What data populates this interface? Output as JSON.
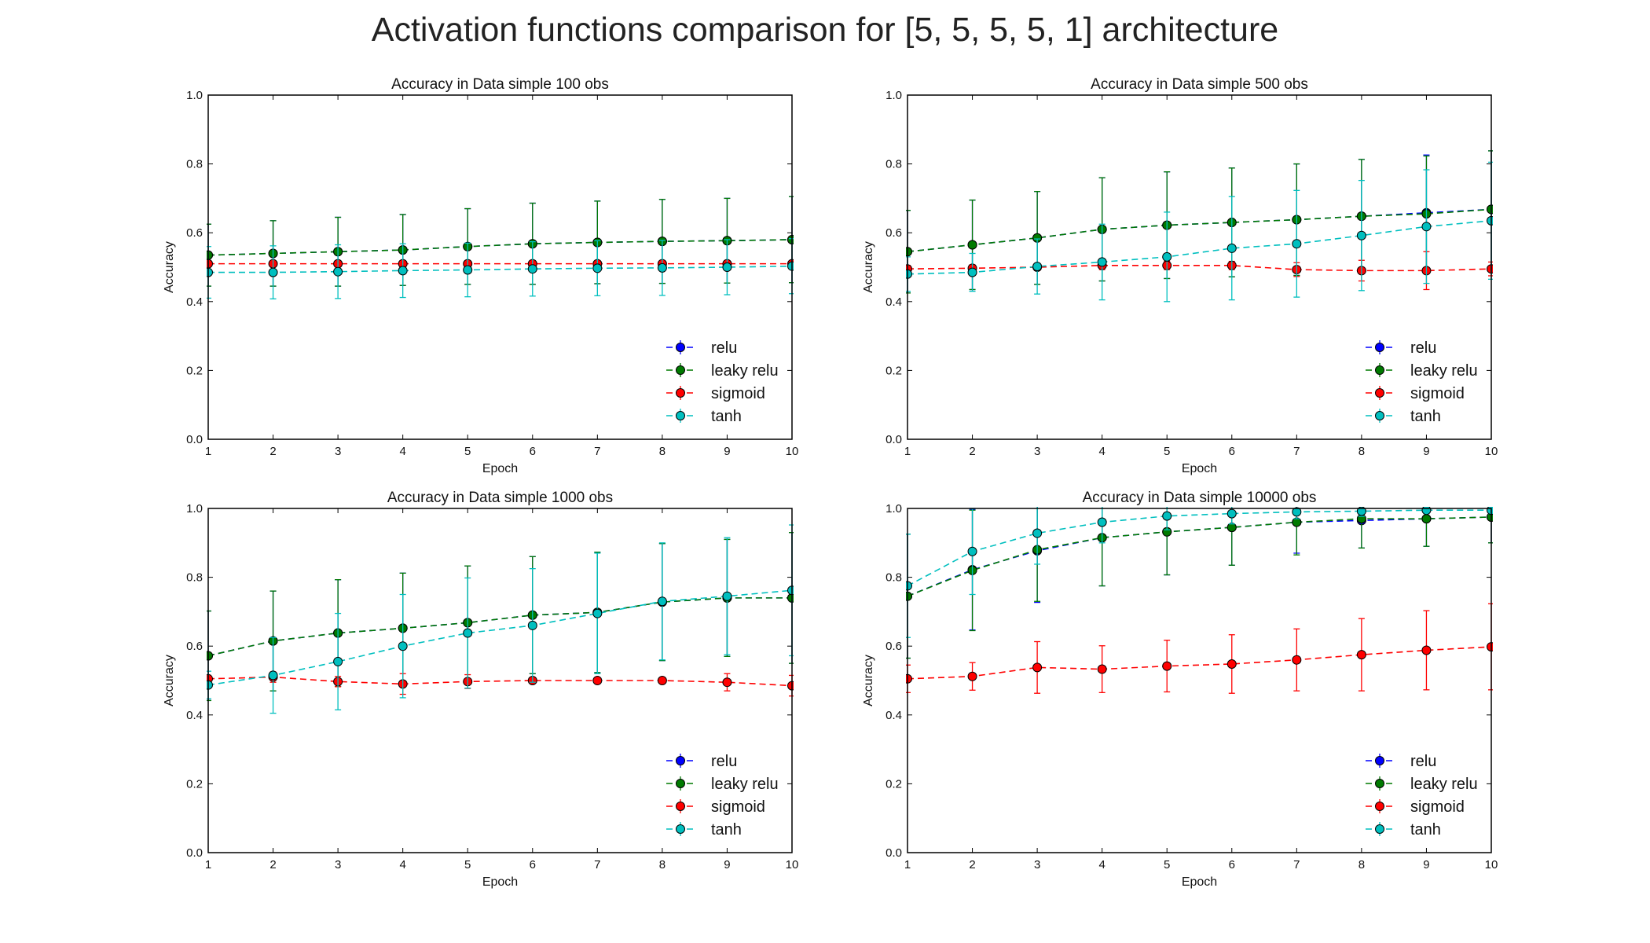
{
  "figure": {
    "title": "Activation functions comparison for [5, 5, 5, 5, 1] architecture"
  },
  "colors": {
    "relu": "#0000ff",
    "leaky relu": "#007a00",
    "sigmoid": "#ff0000",
    "tanh": "#00bfbf"
  },
  "chart_data": [
    {
      "type": "line",
      "title": "Accuracy in Data simple 100 obs",
      "xlabel": "Epoch",
      "ylabel": "Accuracy",
      "xlim": [
        1,
        10
      ],
      "ylim": [
        0.0,
        1.0
      ],
      "xticks": [
        "1",
        "2",
        "3",
        "4",
        "5",
        "6",
        "7",
        "8",
        "9",
        "10"
      ],
      "yticks": [
        "0.0",
        "0.2",
        "0.4",
        "0.6",
        "0.8",
        "1.0"
      ],
      "legend": "lower-right",
      "grid": false,
      "x": [
        1,
        2,
        3,
        4,
        5,
        6,
        7,
        8,
        9,
        10
      ],
      "series": [
        {
          "name": "relu",
          "values": [
            0.535,
            0.54,
            0.545,
            0.55,
            0.56,
            0.568,
            0.572,
            0.575,
            0.577,
            0.58
          ],
          "err": [
            0.09,
            0.095,
            0.1,
            0.103,
            0.11,
            0.118,
            0.12,
            0.122,
            0.123,
            0.125
          ]
        },
        {
          "name": "leaky relu",
          "values": [
            0.535,
            0.54,
            0.545,
            0.55,
            0.56,
            0.568,
            0.572,
            0.575,
            0.577,
            0.58
          ],
          "err": [
            0.09,
            0.095,
            0.1,
            0.103,
            0.11,
            0.118,
            0.12,
            0.122,
            0.123,
            0.125
          ]
        },
        {
          "name": "sigmoid",
          "values": [
            0.51,
            0.51,
            0.51,
            0.51,
            0.51,
            0.51,
            0.51,
            0.51,
            0.51,
            0.51
          ],
          "err": [
            0.005,
            0.005,
            0.005,
            0.005,
            0.005,
            0.005,
            0.005,
            0.005,
            0.005,
            0.005
          ]
        },
        {
          "name": "tanh",
          "values": [
            0.485,
            0.485,
            0.487,
            0.49,
            0.492,
            0.495,
            0.497,
            0.498,
            0.5,
            0.503
          ],
          "err": [
            0.075,
            0.077,
            0.078,
            0.078,
            0.078,
            0.079,
            0.08,
            0.08,
            0.08,
            0.08
          ]
        }
      ]
    },
    {
      "type": "line",
      "title": "Accuracy in Data simple 500 obs",
      "xlabel": "Epoch",
      "ylabel": "Accuracy",
      "xlim": [
        1,
        10
      ],
      "ylim": [
        0.0,
        1.0
      ],
      "xticks": [
        "1",
        "2",
        "3",
        "4",
        "5",
        "6",
        "7",
        "8",
        "9",
        "10"
      ],
      "yticks": [
        "0.0",
        "0.2",
        "0.4",
        "0.6",
        "0.8",
        "1.0"
      ],
      "legend": "lower-right",
      "grid": false,
      "x": [
        1,
        2,
        3,
        4,
        5,
        6,
        7,
        8,
        9,
        10
      ],
      "series": [
        {
          "name": "relu",
          "values": [
            0.545,
            0.565,
            0.585,
            0.61,
            0.622,
            0.63,
            0.638,
            0.648,
            0.658,
            0.668
          ],
          "err": [
            0.12,
            0.13,
            0.135,
            0.15,
            0.155,
            0.158,
            0.162,
            0.165,
            0.168,
            0.17
          ]
        },
        {
          "name": "leaky relu",
          "values": [
            0.545,
            0.565,
            0.585,
            0.61,
            0.622,
            0.63,
            0.638,
            0.648,
            0.655,
            0.668
          ],
          "err": [
            0.12,
            0.13,
            0.135,
            0.15,
            0.155,
            0.158,
            0.162,
            0.165,
            0.168,
            0.17
          ]
        },
        {
          "name": "sigmoid",
          "values": [
            0.495,
            0.497,
            0.5,
            0.505,
            0.505,
            0.505,
            0.493,
            0.49,
            0.49,
            0.495
          ],
          "err": [
            0.01,
            0.01,
            0.01,
            0.012,
            0.012,
            0.012,
            0.02,
            0.03,
            0.055,
            0.02
          ]
        },
        {
          "name": "tanh",
          "values": [
            0.48,
            0.485,
            0.502,
            0.515,
            0.53,
            0.555,
            0.568,
            0.592,
            0.618,
            0.635
          ],
          "err": [
            0.05,
            0.055,
            0.08,
            0.11,
            0.13,
            0.15,
            0.155,
            0.16,
            0.165,
            0.17
          ]
        }
      ]
    },
    {
      "type": "line",
      "title": "Accuracy in Data simple 1000 obs",
      "xlabel": "Epoch",
      "ylabel": "Accuracy",
      "xlim": [
        1,
        10
      ],
      "ylim": [
        0.0,
        1.0
      ],
      "xticks": [
        "1",
        "2",
        "3",
        "4",
        "5",
        "6",
        "7",
        "8",
        "9",
        "10"
      ],
      "yticks": [
        "0.0",
        "0.2",
        "0.4",
        "0.6",
        "0.8",
        "1.0"
      ],
      "legend": "lower-right",
      "grid": false,
      "x": [
        1,
        2,
        3,
        4,
        5,
        6,
        7,
        8,
        9,
        10
      ],
      "series": [
        {
          "name": "relu",
          "values": [
            0.572,
            0.615,
            0.638,
            0.652,
            0.668,
            0.69,
            0.698,
            0.728,
            0.74,
            0.74
          ],
          "err": [
            0.13,
            0.145,
            0.155,
            0.16,
            0.165,
            0.17,
            0.175,
            0.17,
            0.17,
            0.19
          ]
        },
        {
          "name": "leaky relu",
          "values": [
            0.572,
            0.615,
            0.638,
            0.652,
            0.668,
            0.69,
            0.698,
            0.728,
            0.74,
            0.74
          ],
          "err": [
            0.13,
            0.145,
            0.155,
            0.16,
            0.165,
            0.17,
            0.175,
            0.17,
            0.17,
            0.19
          ]
        },
        {
          "name": "sigmoid",
          "values": [
            0.505,
            0.51,
            0.497,
            0.49,
            0.497,
            0.5,
            0.5,
            0.5,
            0.495,
            0.485
          ],
          "err": [
            0.01,
            0.015,
            0.015,
            0.03,
            0.02,
            0.008,
            0.008,
            0.008,
            0.025,
            0.03
          ]
        },
        {
          "name": "tanh",
          "values": [
            0.487,
            0.515,
            0.555,
            0.6,
            0.638,
            0.66,
            0.695,
            0.73,
            0.745,
            0.762
          ],
          "err": [
            0.04,
            0.11,
            0.14,
            0.15,
            0.16,
            0.165,
            0.175,
            0.17,
            0.17,
            0.19
          ]
        }
      ]
    },
    {
      "type": "line",
      "title": "Accuracy in Data simple 10000 obs",
      "xlabel": "Epoch",
      "ylabel": "Accuracy",
      "xlim": [
        1,
        10
      ],
      "ylim": [
        0.0,
        1.0
      ],
      "xticks": [
        "1",
        "2",
        "3",
        "4",
        "5",
        "6",
        "7",
        "8",
        "9",
        "10"
      ],
      "yticks": [
        "0.0",
        "0.2",
        "0.4",
        "0.6",
        "0.8",
        "1.0"
      ],
      "legend": "lower-right",
      "grid": false,
      "x": [
        1,
        2,
        3,
        4,
        5,
        6,
        7,
        8,
        9,
        10
      ],
      "series": [
        {
          "name": "relu",
          "values": [
            0.745,
            0.822,
            0.877,
            0.915,
            0.932,
            0.945,
            0.96,
            0.965,
            0.97,
            0.975
          ],
          "err": [
            0.18,
            0.175,
            0.15,
            0.14,
            0.125,
            0.11,
            0.09,
            0.08,
            0.08,
            0.075
          ]
        },
        {
          "name": "leaky relu",
          "values": [
            0.745,
            0.82,
            0.88,
            0.915,
            0.932,
            0.945,
            0.96,
            0.97,
            0.97,
            0.975
          ],
          "err": [
            0.18,
            0.175,
            0.15,
            0.14,
            0.125,
            0.11,
            0.095,
            0.085,
            0.08,
            0.075
          ]
        },
        {
          "name": "sigmoid",
          "values": [
            0.505,
            0.512,
            0.538,
            0.533,
            0.542,
            0.548,
            0.56,
            0.575,
            0.588,
            0.598
          ],
          "err": [
            0.04,
            0.04,
            0.075,
            0.068,
            0.075,
            0.085,
            0.09,
            0.105,
            0.115,
            0.125
          ]
        },
        {
          "name": "tanh",
          "values": [
            0.775,
            0.875,
            0.928,
            0.96,
            0.978,
            0.985,
            0.99,
            0.992,
            0.995,
            0.995
          ],
          "err": [
            0.15,
            0.125,
            0.09,
            0.06,
            0.04,
            0.03,
            0.02,
            0.015,
            0.01,
            0.01
          ]
        }
      ]
    }
  ]
}
